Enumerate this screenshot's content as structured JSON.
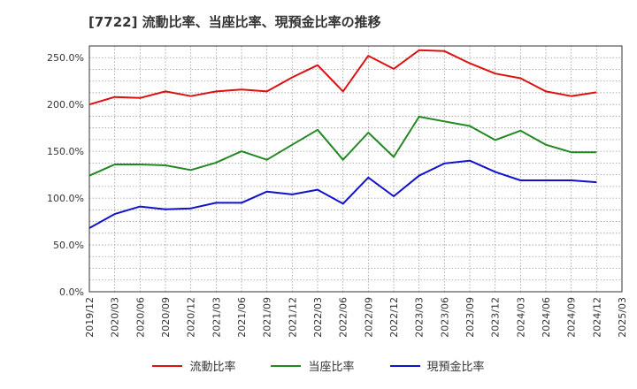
{
  "chart_data": {
    "type": "line",
    "title": "[7722]  流動比率、当座比率、現預金比率の推移",
    "xlabel": "",
    "ylabel": "",
    "ylim": [
      0,
      262.5
    ],
    "yticks": [
      0,
      50,
      100,
      150,
      200,
      250
    ],
    "ytick_labels": [
      "0.0%",
      "50.0%",
      "100.0%",
      "150.0%",
      "200.0%",
      "250.0%"
    ],
    "categories": [
      "2019/12",
      "2020/03",
      "2020/06",
      "2020/09",
      "2020/12",
      "2021/03",
      "2021/06",
      "2021/09",
      "2021/12",
      "2022/03",
      "2022/06",
      "2022/09",
      "2022/12",
      "2023/03",
      "2023/06",
      "2023/09",
      "2023/12",
      "2024/03",
      "2024/06",
      "2024/09",
      "2024/12",
      "2025/03"
    ],
    "series": [
      {
        "name": "流動比率",
        "color": "#dd1111",
        "values": [
          200,
          208,
          207,
          214,
          209,
          214,
          216,
          214,
          229,
          242,
          214,
          252,
          238,
          258,
          257,
          244,
          233,
          228,
          214,
          209,
          213,
          null
        ]
      },
      {
        "name": "当座比率",
        "color": "#228822",
        "values": [
          124,
          136,
          136,
          135,
          130,
          138,
          150,
          141,
          157,
          173,
          141,
          170,
          144,
          187,
          182,
          177,
          162,
          172,
          157,
          149,
          149,
          null
        ]
      },
      {
        "name": "現預金比率",
        "color": "#1111cc",
        "values": [
          68,
          83,
          91,
          88,
          89,
          95,
          95,
          107,
          104,
          109,
          94,
          122,
          102,
          124,
          137,
          140,
          128,
          119,
          119,
          119,
          117,
          null
        ]
      }
    ],
    "legend_position": "bottom",
    "grid": true
  }
}
